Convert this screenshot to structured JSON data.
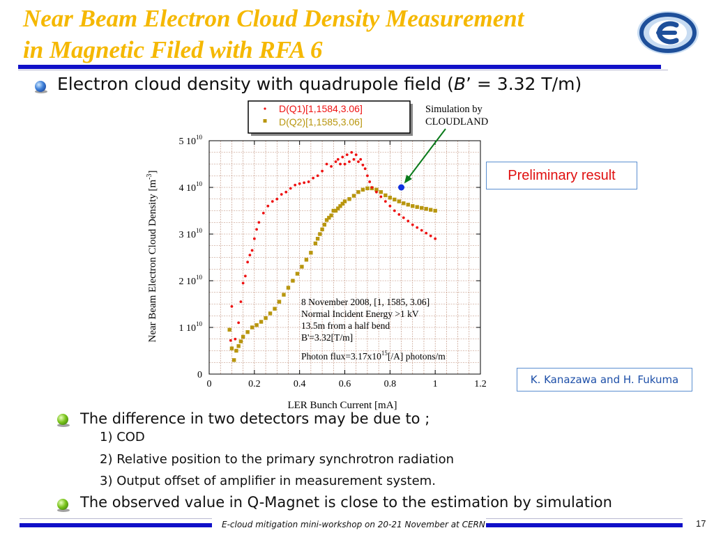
{
  "slide": {
    "title_line1": "Near Beam Electron Cloud Density Measurement",
    "title_line2": "in Magnetic Filed with RFA 6",
    "subtitle_pre": "Electron cloud density with quadrupole field  (",
    "subtitle_var": "B",
    "subtitle_post": "’ = 3.32 T/m)",
    "preliminary": "Preliminary result",
    "credit": "K. Kanazawa and H. Fukuma",
    "bullets": [
      "The difference in two detectors may be due to ;",
      "The observed value in Q-Magnet is close to the estimation by simulation"
    ],
    "sub_items": [
      "1) COD",
      "2) Relative position to the primary synchrotron radiation",
      "3) Output offset of amplifier in measurement system."
    ],
    "footer": "E-cloud mitigation mini-workshop on 20-21 November at CERN",
    "page_number": "17",
    "colors": {
      "title": "#f5b800",
      "rule": "#1010c8",
      "series_q1": "#ee1111",
      "series_q2": "#b8960e",
      "sim_marker": "#1030e0",
      "sim_arrow": "#0a7a1a"
    }
  },
  "chart_data": {
    "type": "scatter",
    "xlabel": "LER Bunch Current [mA]",
    "ylabel": "Near Beam Electron Cloud Density [m",
    "ylabel_sup": "-3",
    "ylabel_end": "]",
    "xlim": [
      0,
      1.2
    ],
    "ylim": [
      0,
      50000000000.0
    ],
    "grid": true,
    "x_ticks": [
      "0",
      "0.2",
      "0.4",
      "0.6",
      "0.8",
      "1",
      "1.2"
    ],
    "y_ticks": [
      {
        "base": "0",
        "exp": ""
      },
      {
        "base": "1 10",
        "exp": "10"
      },
      {
        "base": "2 10",
        "exp": "10"
      },
      {
        "base": "3 10",
        "exp": "10"
      },
      {
        "base": "4 10",
        "exp": "10"
      },
      {
        "base": "5 10",
        "exp": "10"
      }
    ],
    "legend": [
      "D(Q1)[1,1584,3.06]",
      "D(Q2)[1,1585,3.06]"
    ],
    "legend_position": "top",
    "annotation_lines": [
      "8 November 2008, [1, 1585, 3.06]",
      "Normal Incident Energy >1 kV",
      "13.5m from a half bend",
      "B'=3.32[T/m]"
    ],
    "annotation_photon": "Photon flux=3.17x10",
    "annotation_photon_sup": "15",
    "annotation_photon_end": "[/A] photons/m",
    "simulation_label_1": "Simulation by",
    "simulation_label_2": "CLOUDLAND",
    "simulation_point": {
      "x": 0.85,
      "y": 40000000000.0
    },
    "series": [
      {
        "name": "D(Q1)[1,1584,3.06]",
        "x": [
          0.095,
          0.1,
          0.115,
          0.13,
          0.14,
          0.15,
          0.16,
          0.17,
          0.18,
          0.19,
          0.2,
          0.21,
          0.22,
          0.24,
          0.26,
          0.28,
          0.3,
          0.32,
          0.34,
          0.36,
          0.38,
          0.4,
          0.42,
          0.44,
          0.46,
          0.48,
          0.5,
          0.52,
          0.54,
          0.56,
          0.57,
          0.58,
          0.59,
          0.6,
          0.61,
          0.62,
          0.63,
          0.64,
          0.65,
          0.66,
          0.67,
          0.68,
          0.69,
          0.7,
          0.71,
          0.72,
          0.74,
          0.76,
          0.78,
          0.8,
          0.82,
          0.84,
          0.86,
          0.88,
          0.9,
          0.92,
          0.94,
          0.96,
          0.98,
          1.0
        ],
        "values": [
          0.72,
          1.45,
          0.75,
          1.1,
          1.55,
          1.95,
          2.1,
          2.4,
          2.55,
          2.65,
          2.9,
          3.1,
          3.25,
          3.45,
          3.6,
          3.7,
          3.75,
          3.85,
          3.9,
          3.98,
          4.05,
          4.08,
          4.1,
          4.12,
          4.2,
          4.25,
          4.35,
          4.5,
          4.45,
          4.55,
          4.6,
          4.5,
          4.65,
          4.5,
          4.7,
          4.55,
          4.75,
          4.6,
          4.7,
          4.55,
          4.6,
          4.48,
          4.4,
          4.25,
          4.12,
          4.0,
          3.9,
          3.8,
          3.7,
          3.6,
          3.5,
          3.42,
          3.35,
          3.28,
          3.2,
          3.14,
          3.08,
          3.02,
          2.96,
          2.9
        ]
      },
      {
        "name": "D(Q2)[1,1585,3.06]",
        "x": [
          0.09,
          0.1,
          0.11,
          0.12,
          0.13,
          0.14,
          0.15,
          0.17,
          0.19,
          0.21,
          0.23,
          0.25,
          0.27,
          0.29,
          0.31,
          0.33,
          0.35,
          0.37,
          0.39,
          0.41,
          0.43,
          0.45,
          0.47,
          0.48,
          0.49,
          0.5,
          0.51,
          0.52,
          0.53,
          0.54,
          0.55,
          0.56,
          0.57,
          0.58,
          0.59,
          0.6,
          0.62,
          0.64,
          0.66,
          0.68,
          0.7,
          0.72,
          0.74,
          0.76,
          0.78,
          0.8,
          0.82,
          0.84,
          0.86,
          0.88,
          0.9,
          0.92,
          0.94,
          0.96,
          0.98,
          1.0
        ],
        "values": [
          0.95,
          0.55,
          0.3,
          0.5,
          0.6,
          0.7,
          0.8,
          0.9,
          1.0,
          1.05,
          1.12,
          1.2,
          1.3,
          1.4,
          1.55,
          1.7,
          1.85,
          2.0,
          2.15,
          2.3,
          2.45,
          2.6,
          2.8,
          2.9,
          3.0,
          3.1,
          3.2,
          3.3,
          3.35,
          3.4,
          3.5,
          3.5,
          3.55,
          3.6,
          3.65,
          3.7,
          3.75,
          3.82,
          3.9,
          3.95,
          3.98,
          3.98,
          3.95,
          3.9,
          3.83,
          3.78,
          3.74,
          3.7,
          3.66,
          3.63,
          3.6,
          3.58,
          3.56,
          3.54,
          3.52,
          3.5
        ]
      }
    ]
  }
}
